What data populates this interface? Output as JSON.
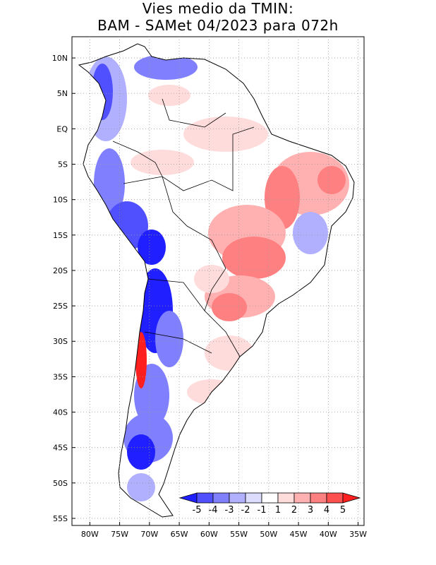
{
  "title": {
    "line1": "Vies medio da TMIN:",
    "line2": "BAM - SAMet 04/2023  para 072h"
  },
  "map": {
    "lon_range": [
      -83,
      -34
    ],
    "lat_range": [
      -56,
      13
    ],
    "lon_ticks": [
      {
        "value": -80,
        "label": "80W"
      },
      {
        "value": -75,
        "label": "75W"
      },
      {
        "value": -70,
        "label": "70W"
      },
      {
        "value": -65,
        "label": "65W"
      },
      {
        "value": -60,
        "label": "60W"
      },
      {
        "value": -55,
        "label": "55W"
      },
      {
        "value": -50,
        "label": "50W"
      },
      {
        "value": -45,
        "label": "45W"
      },
      {
        "value": -40,
        "label": "40W"
      },
      {
        "value": -35,
        "label": "35W"
      }
    ],
    "lat_ticks": [
      {
        "value": 10,
        "label": "10N"
      },
      {
        "value": 5,
        "label": "5N"
      },
      {
        "value": 0,
        "label": "EQ"
      },
      {
        "value": -5,
        "label": "5S"
      },
      {
        "value": -10,
        "label": "10S"
      },
      {
        "value": -15,
        "label": "15S"
      },
      {
        "value": -20,
        "label": "20S"
      },
      {
        "value": -25,
        "label": "25S"
      },
      {
        "value": -30,
        "label": "30S"
      },
      {
        "value": -35,
        "label": "35S"
      },
      {
        "value": -40,
        "label": "40S"
      },
      {
        "value": -45,
        "label": "45S"
      },
      {
        "value": -50,
        "label": "50S"
      },
      {
        "value": -55,
        "label": "55S"
      }
    ],
    "grid": "dotted"
  },
  "colorbar": {
    "labels": [
      "-5",
      "-4",
      "-3",
      "-2",
      "-1",
      "1",
      "2",
      "3",
      "4",
      "5"
    ],
    "colors": [
      "#1f1fff",
      "#5050ff",
      "#8080ff",
      "#b0b0ff",
      "#dcdcff",
      "#ffffff",
      "#ffdcdc",
      "#ffb0b0",
      "#ff8080",
      "#ff5050",
      "#ff1f1f"
    ]
  }
}
